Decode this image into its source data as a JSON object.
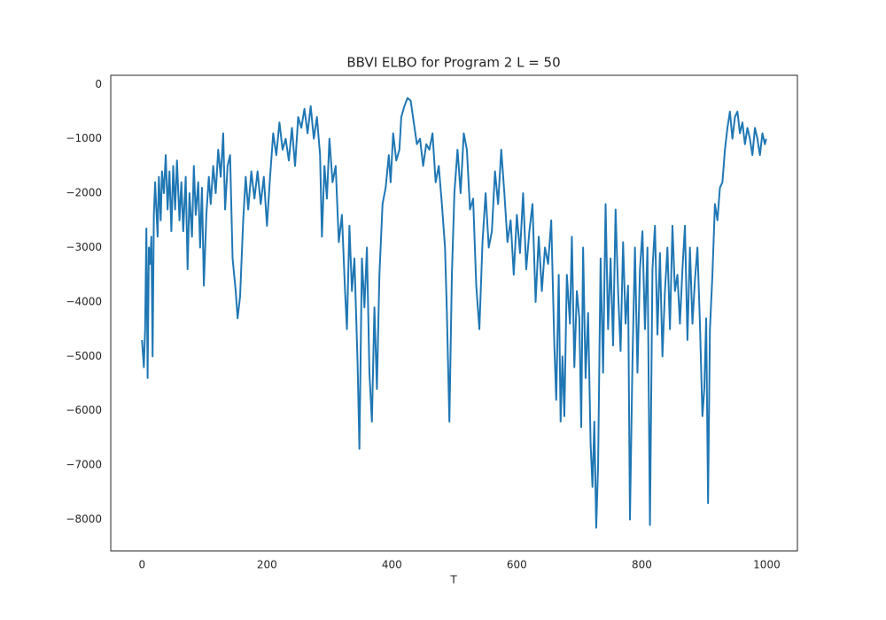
{
  "chart_data": {
    "type": "line",
    "title": "BBVI ELBO for Program 2   L = 50",
    "x_label": "T",
    "color": "#1f77b4",
    "x": [
      0,
      3,
      5,
      7,
      9,
      11,
      13,
      15,
      17,
      19,
      21,
      23,
      25,
      27,
      30,
      32,
      35,
      38,
      41,
      44,
      47,
      50,
      53,
      56,
      60,
      63,
      66,
      70,
      73,
      76,
      80,
      83,
      86,
      90,
      93,
      96,
      99,
      103,
      107,
      110,
      114,
      118,
      122,
      126,
      130,
      133,
      137,
      141,
      145,
      150,
      153,
      157,
      162,
      166,
      170,
      175,
      180,
      185,
      190,
      195,
      200,
      205,
      210,
      215,
      220,
      225,
      230,
      235,
      240,
      245,
      250,
      255,
      260,
      265,
      270,
      275,
      280,
      285,
      288,
      292,
      296,
      300,
      305,
      310,
      315,
      320,
      325,
      328,
      332,
      336,
      340,
      345,
      348,
      352,
      356,
      360,
      364,
      368,
      372,
      376,
      380,
      385,
      390,
      395,
      398,
      402,
      407,
      412,
      415,
      420,
      425,
      430,
      435,
      440,
      445,
      450,
      455,
      460,
      465,
      470,
      475,
      480,
      485,
      488,
      492,
      496,
      500,
      505,
      510,
      515,
      520,
      525,
      530,
      535,
      540,
      545,
      550,
      555,
      560,
      565,
      570,
      575,
      580,
      585,
      590,
      595,
      600,
      605,
      610,
      615,
      620,
      625,
      630,
      635,
      640,
      645,
      650,
      655,
      660,
      663,
      667,
      670,
      673,
      676,
      680,
      685,
      688,
      692,
      696,
      700,
      703,
      706,
      710,
      714,
      718,
      721,
      724,
      727,
      730,
      734,
      738,
      742,
      746,
      750,
      754,
      758,
      762,
      766,
      770,
      774,
      778,
      781,
      785,
      789,
      793,
      797,
      801,
      805,
      809,
      813,
      817,
      821,
      825,
      829,
      833,
      837,
      841,
      845,
      849,
      853,
      857,
      861,
      865,
      869,
      873,
      877,
      881,
      885,
      889,
      893,
      897,
      900,
      903,
      906,
      909,
      913,
      917,
      921,
      925,
      929,
      933,
      937,
      941,
      945,
      949,
      953,
      957,
      961,
      965,
      969,
      973,
      977,
      981,
      985,
      989,
      993,
      997,
      999
    ],
    "values": [
      -4700,
      -5200,
      -4500,
      -2650,
      -5400,
      -3000,
      -3300,
      -2800,
      -5000,
      -2400,
      -1800,
      -2300,
      -2800,
      -1700,
      -2500,
      -1600,
      -2000,
      -1300,
      -2300,
      -1600,
      -2700,
      -1500,
      -2300,
      -1400,
      -2500,
      -1800,
      -2700,
      -1700,
      -3400,
      -2000,
      -2800,
      -1500,
      -2400,
      -1800,
      -3000,
      -1900,
      -3700,
      -2400,
      -1700,
      -2200,
      -1500,
      -2000,
      -1200,
      -1700,
      -900,
      -2300,
      -1500,
      -1300,
      -3200,
      -3800,
      -4300,
      -3900,
      -2500,
      -1700,
      -2300,
      -1600,
      -2100,
      -1600,
      -2200,
      -1700,
      -2600,
      -1700,
      -900,
      -1300,
      -700,
      -1200,
      -1000,
      -1400,
      -800,
      -1500,
      -600,
      -800,
      -450,
      -900,
      -400,
      -1000,
      -600,
      -1300,
      -2800,
      -1500,
      -2100,
      -1000,
      -1800,
      -1500,
      -2900,
      -2400,
      -3800,
      -4500,
      -2600,
      -3800,
      -3200,
      -5100,
      -6700,
      -3200,
      -4100,
      -3000,
      -5300,
      -6200,
      -4100,
      -5600,
      -3500,
      -2200,
      -1900,
      -1300,
      -1800,
      -900,
      -1400,
      -1200,
      -600,
      -400,
      -250,
      -300,
      -700,
      -1100,
      -1000,
      -1500,
      -1100,
      -1200,
      -900,
      -1800,
      -1500,
      -2200,
      -3000,
      -4200,
      -6200,
      -3500,
      -2000,
      -1200,
      -2000,
      -900,
      -1200,
      -2300,
      -2100,
      -3700,
      -4500,
      -2900,
      -2000,
      -3000,
      -2700,
      -1600,
      -2200,
      -1200,
      -2000,
      -2900,
      -2500,
      -3500,
      -2400,
      -3100,
      -2000,
      -3400,
      -2700,
      -2200,
      -4000,
      -2800,
      -3800,
      -3000,
      -3300,
      -2500,
      -4800,
      -5800,
      -3500,
      -6200,
      -5000,
      -6100,
      -3500,
      -4400,
      -2800,
      -5200,
      -3800,
      -4300,
      -6300,
      -3000,
      -5400,
      -4200,
      -6600,
      -7400,
      -6200,
      -8150,
      -7000,
      -3200,
      -5300,
      -2200,
      -4500,
      -3200,
      -4800,
      -2300,
      -3800,
      -4900,
      -2900,
      -4400,
      -3700,
      -8000,
      -5100,
      -3000,
      -5300,
      -3400,
      -2700,
      -4500,
      -3000,
      -8100,
      -3400,
      -2600,
      -4600,
      -3100,
      -5000,
      -3800,
      -3000,
      -4500,
      -2600,
      -3800,
      -3500,
      -4400,
      -3400,
      -2600,
      -4700,
      -3000,
      -4400,
      -3600,
      -3000,
      -4400,
      -6100,
      -5600,
      -4300,
      -7700,
      -4500,
      -3500,
      -2200,
      -2500,
      -1900,
      -1800,
      -1200,
      -800,
      -500,
      -1000,
      -600,
      -500,
      -900,
      -700,
      -1100,
      -800,
      -1000,
      -1300,
      -800,
      -1000,
      -1300,
      -900,
      -1100,
      -1000
    ],
    "xlim": [
      -50,
      1049
    ],
    "ylim": [
      -8577,
      167
    ],
    "xticks": [
      0,
      200,
      400,
      600,
      800,
      1000
    ],
    "yticks": [
      0,
      {
        "value": -1000,
        "label": "−1000"
      },
      {
        "value": -2000,
        "label": "−2000"
      },
      {
        "value": -3000,
        "label": "−3000"
      },
      {
        "value": -4000,
        "label": "−4000"
      },
      {
        "value": -5000,
        "label": "−5000"
      },
      {
        "value": -6000,
        "label": "−6000"
      },
      {
        "value": -7000,
        "label": "−7000"
      },
      {
        "value": -8000,
        "label": "−8000"
      }
    ]
  }
}
